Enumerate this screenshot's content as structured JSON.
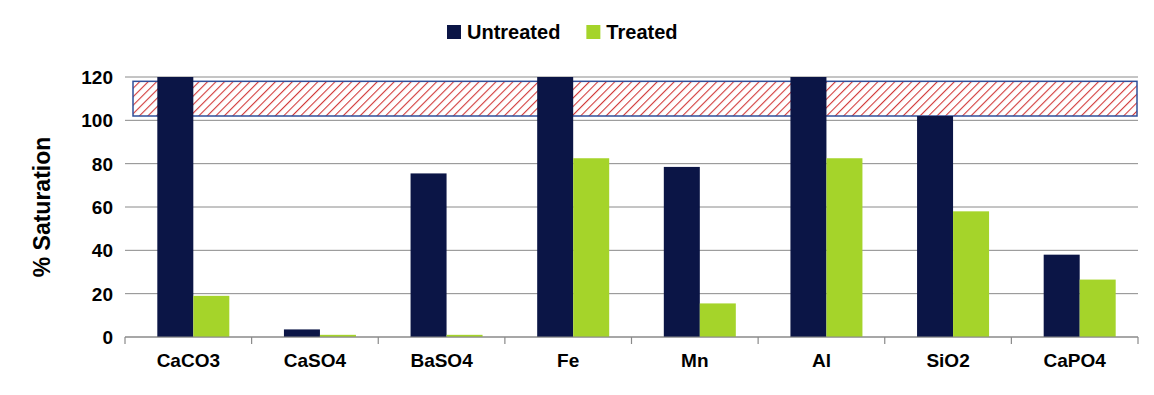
{
  "chart_data": {
    "type": "bar",
    "y_label": "% Saturation",
    "categories": [
      "CaCO3",
      "CaSO4",
      "BaSO4",
      "Fe",
      "Mn",
      "Al",
      "SiO2",
      "CaPO4"
    ],
    "series": [
      {
        "name": "Untreated",
        "color": "#0b1546",
        "values": [
          120,
          3.5,
          75.5,
          120,
          78.5,
          120,
          102,
          38
        ]
      },
      {
        "name": "Treated",
        "color": "#a5d42a",
        "values": [
          19,
          1,
          1,
          82.5,
          15.5,
          82.5,
          58,
          26.5
        ]
      }
    ],
    "band": [
      102,
      118
    ],
    "ylim": [
      0,
      120
    ],
    "yticks": [
      0,
      20,
      40,
      60,
      80,
      100,
      120
    ],
    "grid": true,
    "legend": "top"
  }
}
